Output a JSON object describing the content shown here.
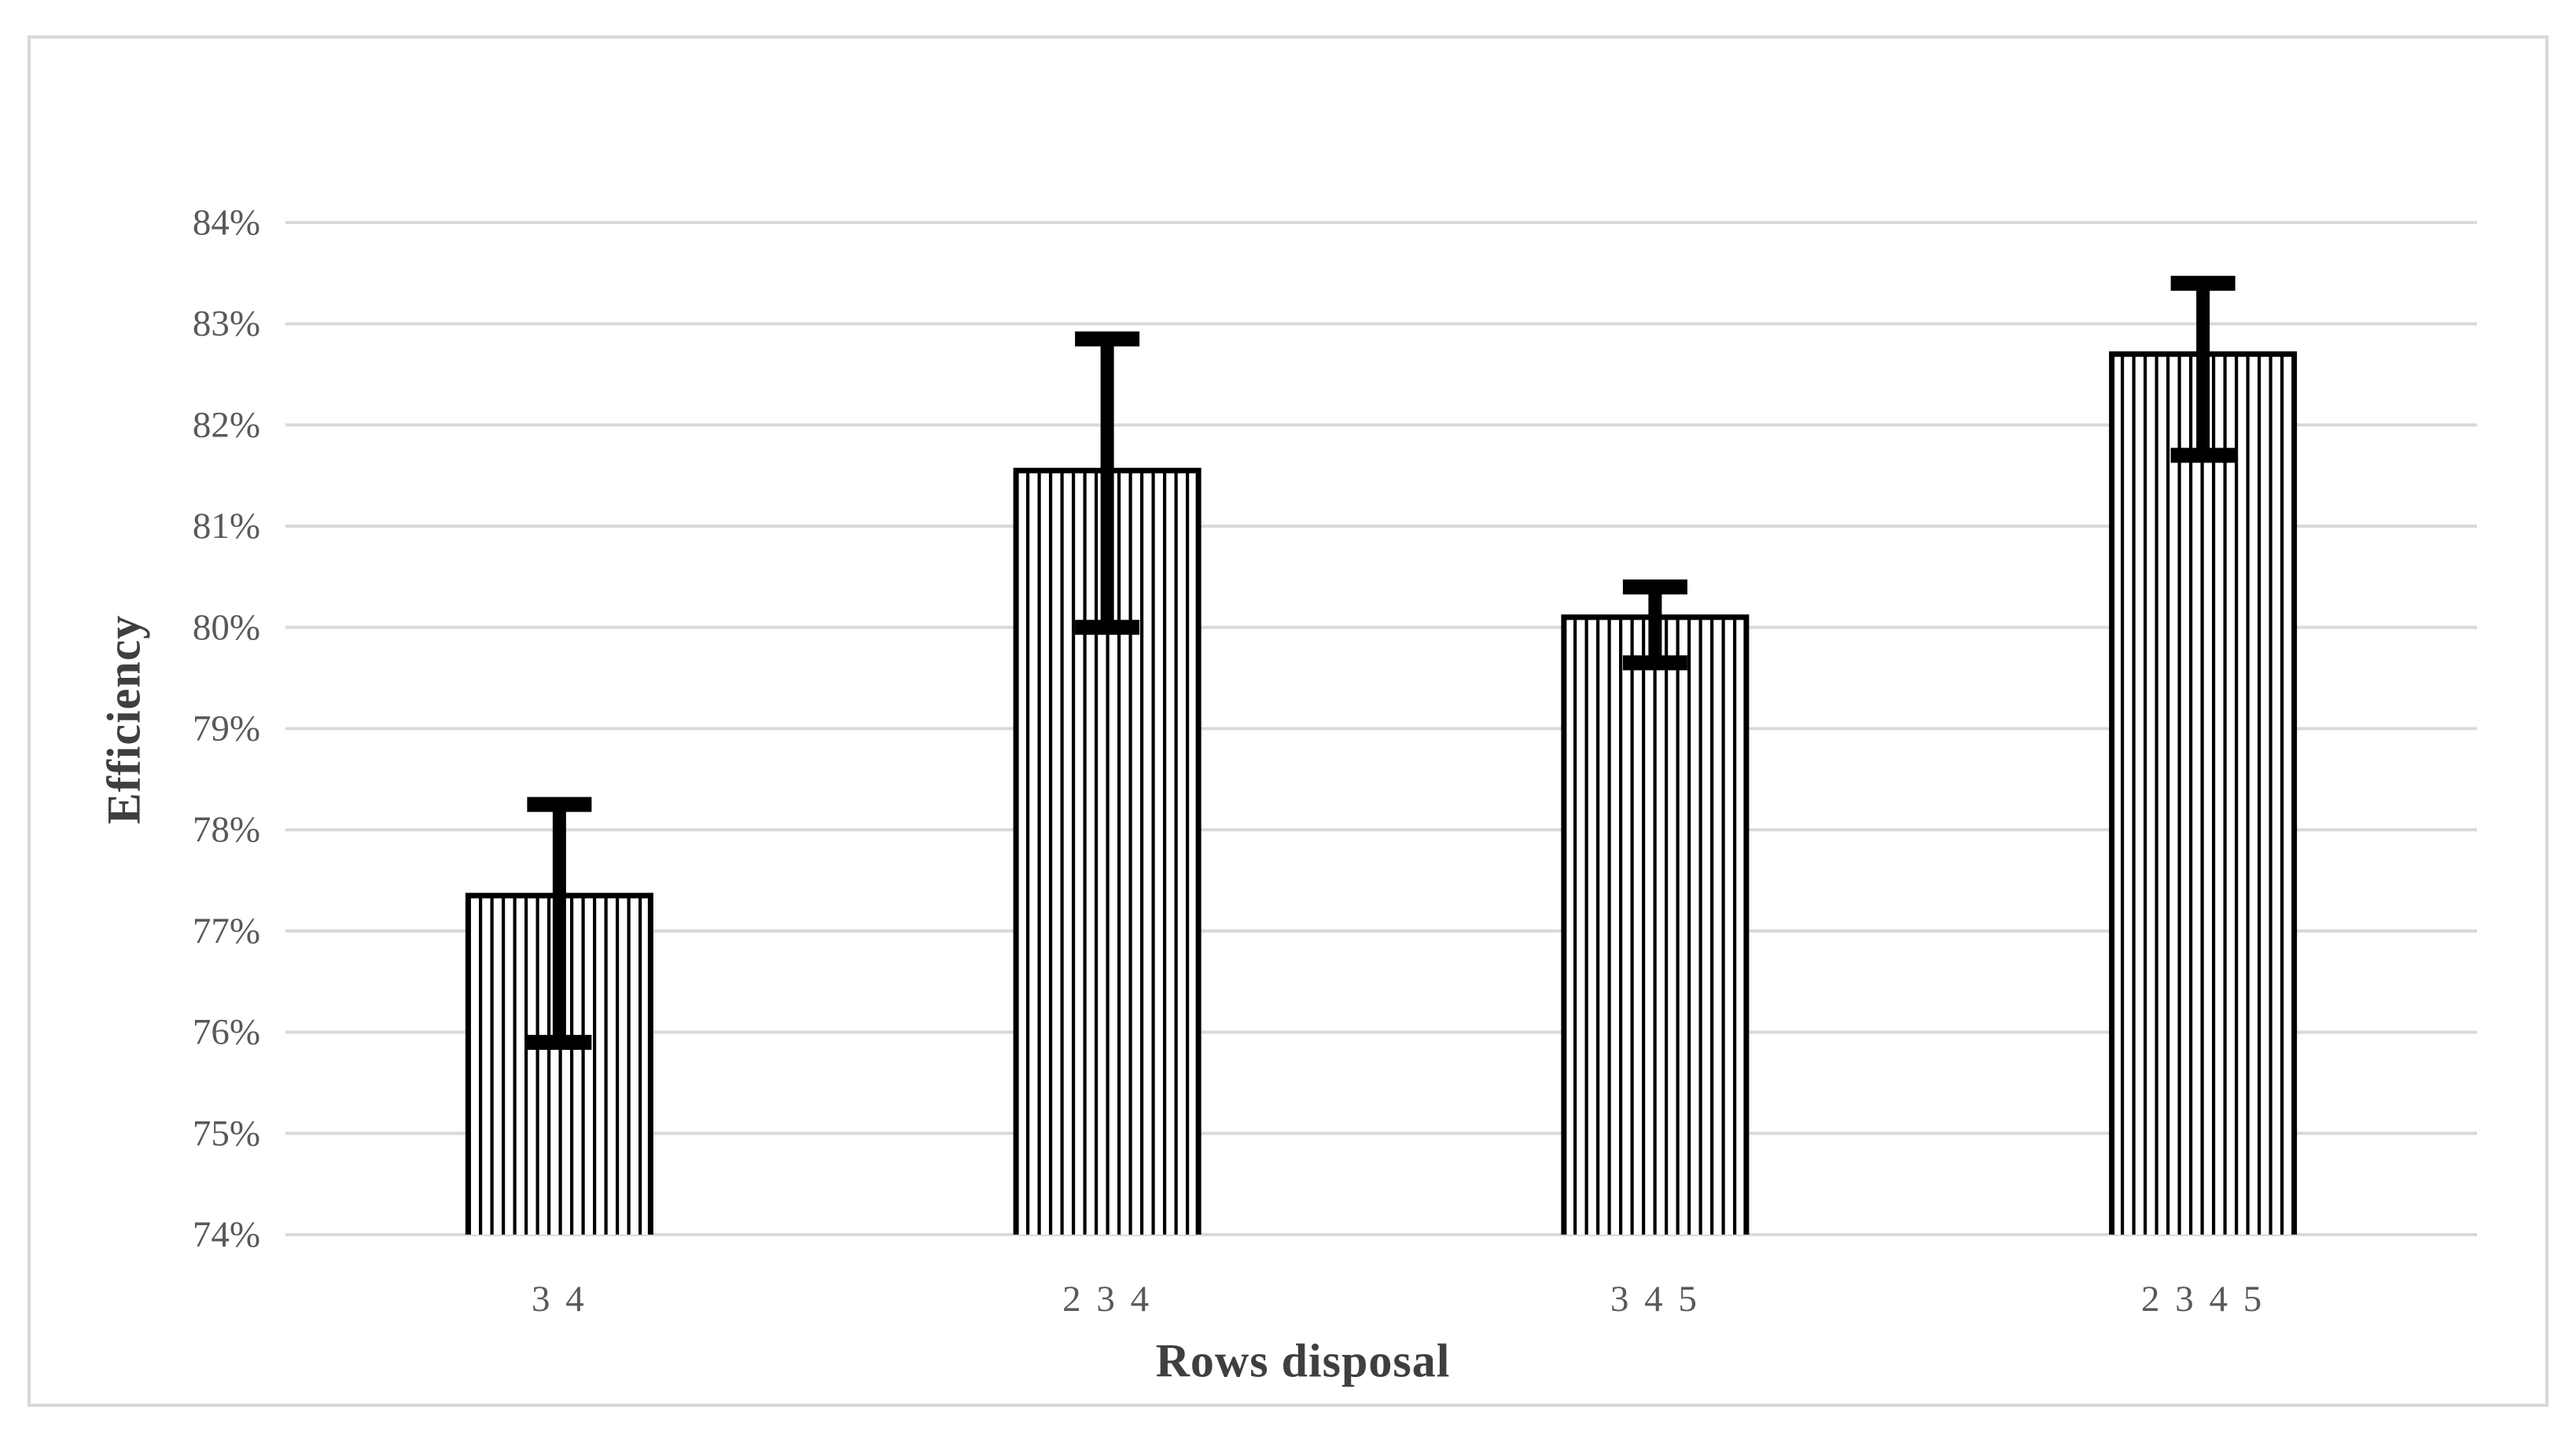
{
  "figure": {
    "background": "#ffffff",
    "border_color": "#d9d9d9"
  },
  "chart_data": {
    "type": "bar",
    "title": "",
    "xlabel": "Rows disposal",
    "ylabel": "Efficiency",
    "categories": [
      "3 4",
      "2 3 4",
      "3 4 5",
      "2 3 4 5"
    ],
    "values": [
      77.35,
      81.55,
      80.1,
      82.7
    ],
    "error_bars": {
      "upper": [
        78.25,
        82.85,
        80.4,
        83.4
      ],
      "lower": [
        75.9,
        80.0,
        79.65,
        81.7
      ]
    },
    "ylim": [
      74,
      84
    ],
    "ytick_step": 1,
    "ytick_labels": [
      "74%",
      "75%",
      "76%",
      "77%",
      "78%",
      "79%",
      "80%",
      "81%",
      "82%",
      "83%",
      "84%"
    ],
    "grid": true,
    "legend": false,
    "bar_style": {
      "fill": "vertical-hatch",
      "hatch_color": "#000000",
      "outline_color": "#000000",
      "background": "#ffffff"
    },
    "colors": {
      "gridline": "#d9d9d9",
      "tick_text": "#595959",
      "category_text": "#595959",
      "axis_title_text": "#3f3f3f",
      "error_bar": "#000000"
    }
  }
}
